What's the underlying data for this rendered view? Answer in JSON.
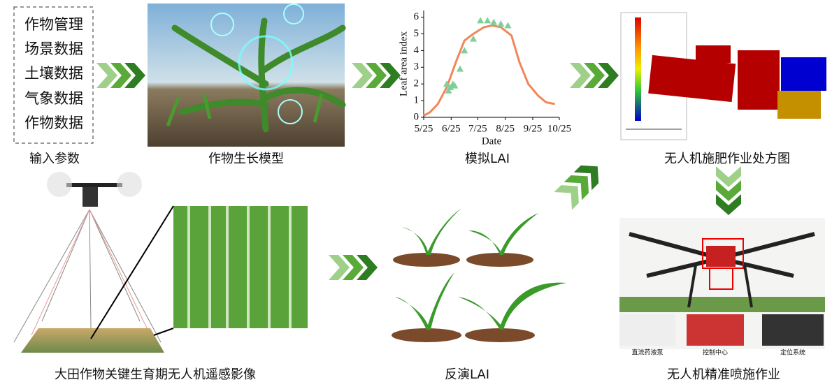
{
  "inputs": {
    "items": [
      "作物管理",
      "场景数据",
      "土壤数据",
      "气象数据",
      "作物数据"
    ],
    "caption": "输入参数"
  },
  "crop_model": {
    "caption": "作物生长模型"
  },
  "lai_chart": {
    "ylabel": "Leaf area index",
    "xlabel": "Date",
    "xlim": [
      "5/25",
      "10/25"
    ],
    "xticks": [
      "5/25",
      "6/25",
      "7/25",
      "8/25",
      "9/25",
      "10/25"
    ],
    "ylim": [
      0,
      6.4
    ],
    "yticks": [
      0,
      1,
      2,
      3,
      4,
      5,
      6
    ],
    "simulated": {
      "color": "#f0875a",
      "x": [
        "5/25",
        "6/1",
        "6/10",
        "6/20",
        "7/1",
        "7/10",
        "7/20",
        "8/1",
        "8/10",
        "8/20",
        "9/1",
        "9/10",
        "9/20",
        "10/1",
        "10/10",
        "10/20"
      ],
      "values": [
        0.1,
        0.3,
        0.8,
        1.8,
        3.4,
        4.6,
        5.0,
        5.4,
        5.5,
        5.4,
        4.9,
        3.3,
        2.0,
        1.3,
        0.9,
        0.8
      ]
    },
    "observed": {
      "color": "#7fcf9a",
      "x": [
        "6/20",
        "6/22",
        "6/24",
        "6/27",
        "6/29",
        "7/5",
        "7/10",
        "7/20",
        "7/28",
        "8/5",
        "8/12",
        "8/20",
        "8/28"
      ],
      "values": [
        2.0,
        1.6,
        1.8,
        2.0,
        1.9,
        2.9,
        4.0,
        4.7,
        5.8,
        5.8,
        5.7,
        5.6,
        5.5
      ]
    },
    "caption": "模拟LAI"
  },
  "prescription_map": {
    "caption": "无人机施肥作业处方图"
  },
  "uav_imagery": {
    "caption": "大田作物关键生育期无人机遥感影像"
  },
  "inversion": {
    "caption": "反演LAI"
  },
  "spraying": {
    "parts": [
      "直流药液泵",
      "控制中心",
      "定位系统"
    ],
    "caption": "无人机精准喷施作业"
  }
}
